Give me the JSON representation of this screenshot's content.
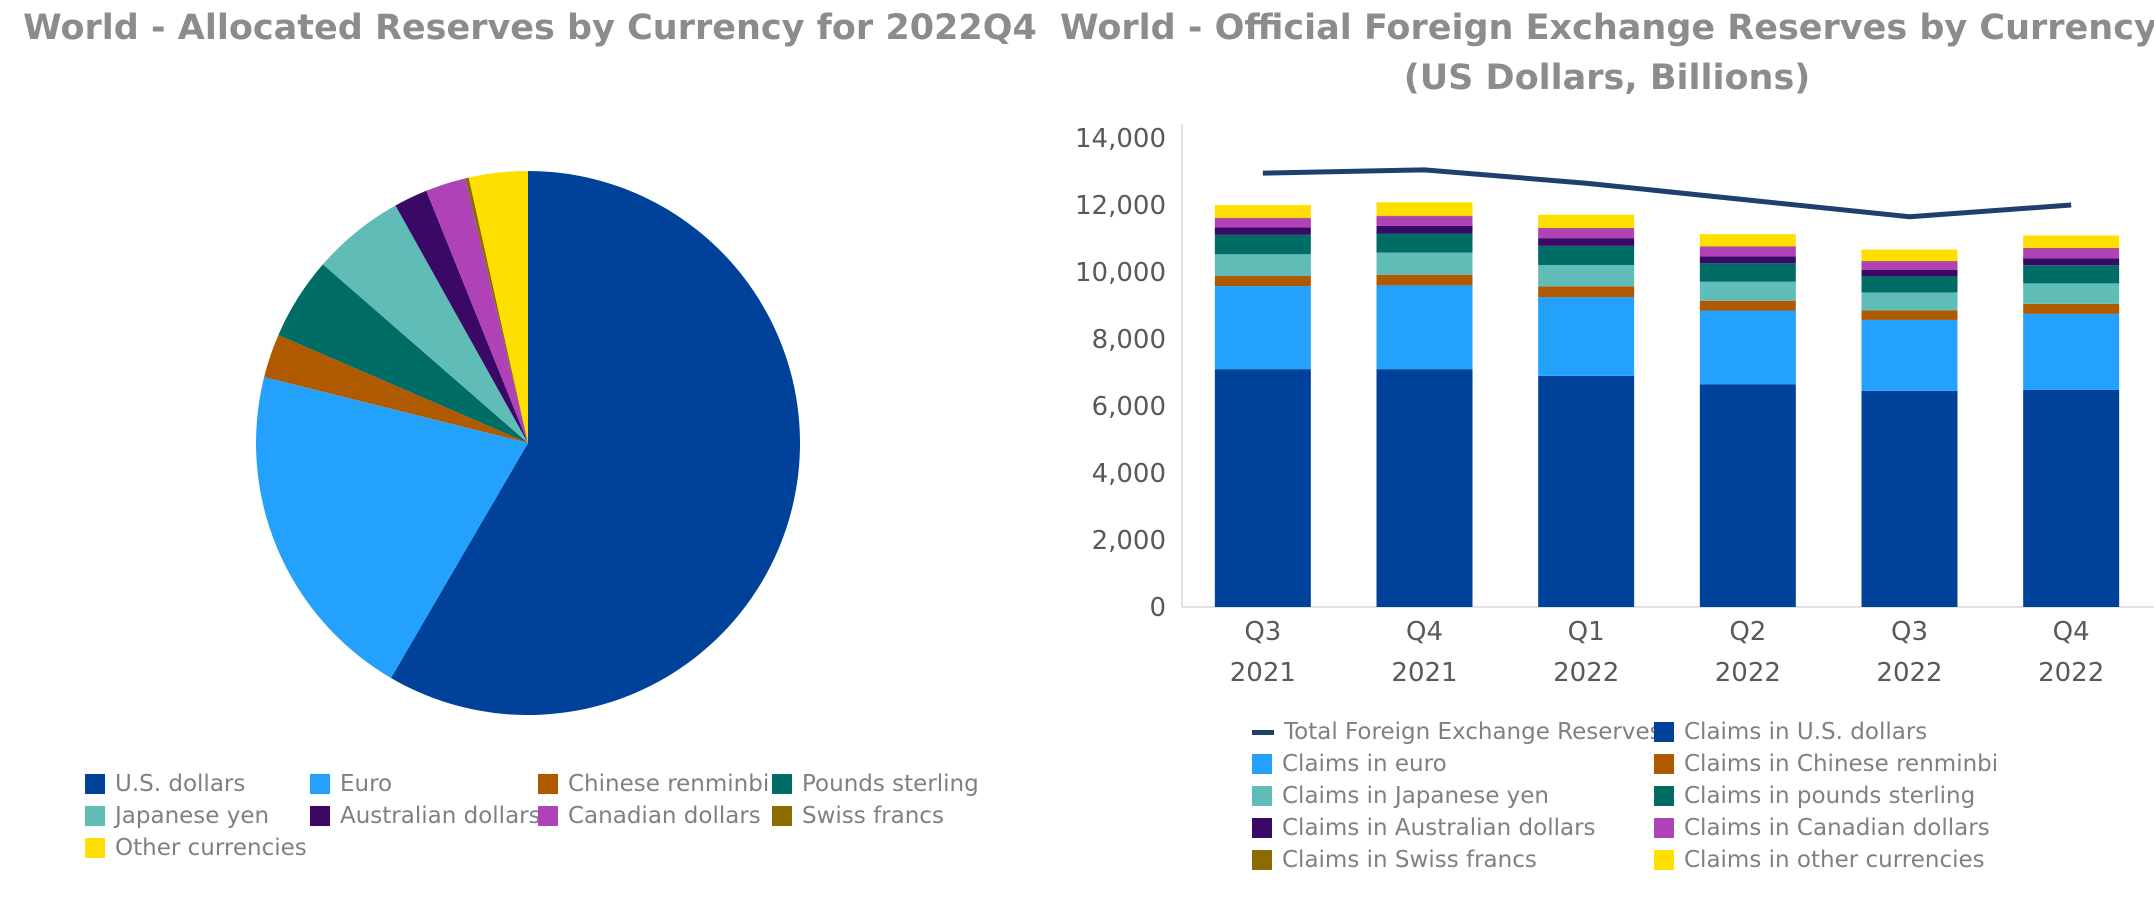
{
  "colors": {
    "usd": "#00429A",
    "eur": "#24A1FD",
    "cny": "#B05A00",
    "gbp": "#006C66",
    "jpy": "#5FBCB7",
    "aud": "#3A0865",
    "cad": "#AF42B6",
    "chf": "#8A6C00",
    "other": "#FFDF00",
    "total_line": "#1F3F6C",
    "title_text": "#8c8c8c"
  },
  "chart_data": [
    {
      "type": "pie",
      "title": "World - Allocated Reserves by Currency for 2022Q4",
      "slices": [
        {
          "label": "U.S. dollars",
          "value": 58.4,
          "color_key": "usd"
        },
        {
          "label": "Euro",
          "value": 20.5,
          "color_key": "eur"
        },
        {
          "label": "Chinese renminbi",
          "value": 2.6,
          "color_key": "cny"
        },
        {
          "label": "Pounds sterling",
          "value": 4.9,
          "color_key": "gbp"
        },
        {
          "label": "Japanese yen",
          "value": 5.5,
          "color_key": "jpy"
        },
        {
          "label": "Australian dollars",
          "value": 2.0,
          "color_key": "aud"
        },
        {
          "label": "Canadian dollars",
          "value": 2.4,
          "color_key": "cad"
        },
        {
          "label": "Swiss francs",
          "value": 0.2,
          "color_key": "chf"
        },
        {
          "label": "Other currencies",
          "value": 3.5,
          "color_key": "other"
        }
      ],
      "legend_position": "bottom"
    },
    {
      "type": "bar",
      "stacked": true,
      "title_lines": [
        "World - Official Foreign Exchange Reserves by Currency",
        "(US Dollars, Billions)"
      ],
      "categories": [
        [
          "Q3",
          "2021"
        ],
        [
          "Q4",
          "2021"
        ],
        [
          "Q1",
          "2022"
        ],
        [
          "Q2",
          "2022"
        ],
        [
          "Q3",
          "2022"
        ],
        [
          "Q4",
          "2022"
        ]
      ],
      "ylim": [
        0,
        14000
      ],
      "yticks": [
        "0",
        "2,000",
        "4,000",
        "6,000",
        "8,000",
        "10,000",
        "12,000",
        "14,000"
      ],
      "ytick_values": [
        0,
        2000,
        4000,
        6000,
        8000,
        10000,
        12000,
        14000
      ],
      "series": [
        {
          "name": "Claims in U.S. dollars",
          "color_key": "usd",
          "values": [
            7100,
            7100,
            6900,
            6650,
            6450,
            6480
          ]
        },
        {
          "name": "Claims in euro",
          "color_key": "eur",
          "values": [
            2480,
            2500,
            2350,
            2200,
            2120,
            2270
          ]
        },
        {
          "name": "Claims in Chinese renminbi",
          "color_key": "cny",
          "values": [
            300,
            320,
            320,
            290,
            280,
            300
          ]
        },
        {
          "name": "Claims in Japanese yen",
          "color_key": "jpy",
          "values": [
            650,
            660,
            640,
            570,
            540,
            610
          ]
        },
        {
          "name": "Claims in pounds sterling",
          "color_key": "gbp",
          "values": [
            580,
            570,
            570,
            550,
            480,
            540
          ]
        },
        {
          "name": "Claims in Australian dollars",
          "color_key": "aud",
          "values": [
            220,
            230,
            230,
            210,
            190,
            210
          ]
        },
        {
          "name": "Claims in Canadian dollars",
          "color_key": "cad",
          "values": [
            270,
            280,
            290,
            280,
            250,
            290
          ]
        },
        {
          "name": "Claims in Swiss francs",
          "color_key": "chf",
          "values": [
            20,
            20,
            20,
            20,
            20,
            20
          ]
        },
        {
          "name": "Claims in other currencies",
          "color_key": "other",
          "values": [
            380,
            400,
            390,
            360,
            340,
            370
          ]
        }
      ],
      "line_series": {
        "name": "Total Foreign Exchange Reserves",
        "color_key": "total_line",
        "values": [
          12950,
          13050,
          12650,
          12150,
          11650,
          12000
        ]
      },
      "legend_position": "bottom",
      "legend_order": [
        "Total Foreign Exchange Reserves",
        "Claims in U.S. dollars",
        "Claims in euro",
        "Claims in Chinese renminbi",
        "Claims in Japanese yen",
        "Claims in pounds sterling",
        "Claims in Australian dollars",
        "Claims in Canadian dollars",
        "Claims in Swiss francs",
        "Claims in other currencies"
      ]
    }
  ]
}
